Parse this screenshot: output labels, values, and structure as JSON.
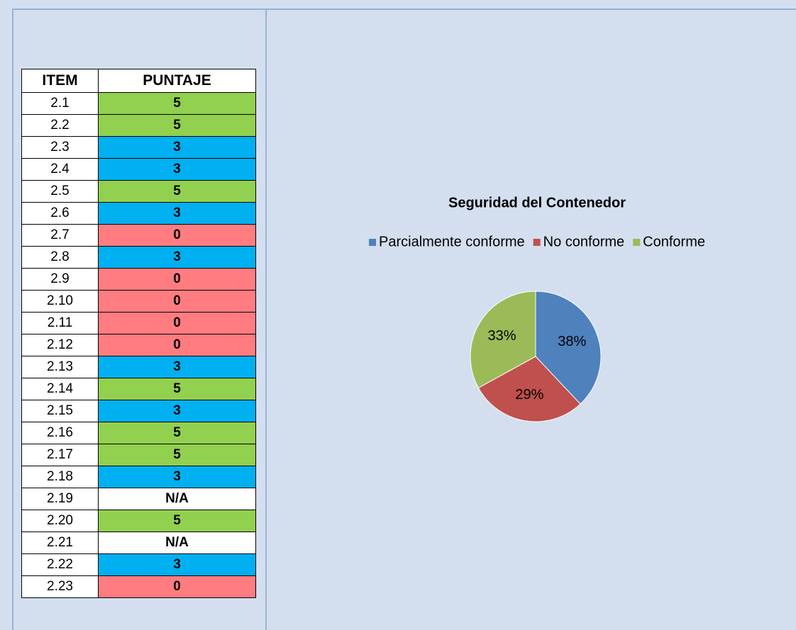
{
  "table": {
    "header": [
      "ITEM",
      "PUNTAJE"
    ],
    "rows": [
      {
        "item": "2.1",
        "score": "5",
        "color": "#92d050"
      },
      {
        "item": "2.2",
        "score": "5",
        "color": "#92d050"
      },
      {
        "item": "2.3",
        "score": "3",
        "color": "#00b0f0"
      },
      {
        "item": "2.4",
        "score": "3",
        "color": "#00b0f0"
      },
      {
        "item": "2.5",
        "score": "5",
        "color": "#92d050"
      },
      {
        "item": "2.6",
        "score": "3",
        "color": "#00b0f0"
      },
      {
        "item": "2.7",
        "score": "0",
        "color": "#ff7c80"
      },
      {
        "item": "2.8",
        "score": "3",
        "color": "#00b0f0"
      },
      {
        "item": "2.9",
        "score": "0",
        "color": "#ff7c80"
      },
      {
        "item": "2.10",
        "score": "0",
        "color": "#ff7c80"
      },
      {
        "item": "2.11",
        "score": "0",
        "color": "#ff7c80"
      },
      {
        "item": "2.12",
        "score": "0",
        "color": "#ff7c80"
      },
      {
        "item": "2.13",
        "score": "3",
        "color": "#00b0f0"
      },
      {
        "item": "2.14",
        "score": "5",
        "color": "#92d050"
      },
      {
        "item": "2.15",
        "score": "3",
        "color": "#00b0f0"
      },
      {
        "item": "2.16",
        "score": "5",
        "color": "#92d050"
      },
      {
        "item": "2.17",
        "score": "5",
        "color": "#92d050"
      },
      {
        "item": "2.18",
        "score": "3",
        "color": "#00b0f0"
      },
      {
        "item": "2.19",
        "score": "N/A",
        "color": "#ffffff"
      },
      {
        "item": "2.20",
        "score": "5",
        "color": "#92d050"
      },
      {
        "item": "2.21",
        "score": "N/A",
        "color": "#ffffff"
      },
      {
        "item": "2.22",
        "score": "3",
        "color": "#00b0f0"
      },
      {
        "item": "2.23",
        "score": "0",
        "color": "#ff7c80"
      }
    ]
  },
  "chart_data": {
    "type": "pie",
    "title": "Seguridad del Contenedor",
    "categories": [
      "Parcialmente conforme",
      "No conforme",
      "Conforme"
    ],
    "values": [
      38,
      29,
      33
    ],
    "value_labels": [
      "38%",
      "29%",
      "33%"
    ],
    "colors": [
      "#4f81bd",
      "#c0504d",
      "#9bbb59"
    ],
    "legend": "top"
  }
}
